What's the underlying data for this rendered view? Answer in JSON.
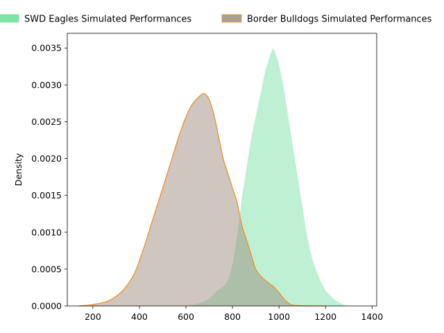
{
  "chart_data": {
    "type": "area",
    "title": "",
    "xlabel": "",
    "ylabel": "Density",
    "xlim": [
      90,
      1420
    ],
    "ylim": [
      0,
      0.0037
    ],
    "x_ticks": [
      200,
      400,
      600,
      800,
      1000,
      1200,
      1400
    ],
    "y_ticks": [
      0,
      0.0005,
      0.001,
      0.0015,
      0.002,
      0.0025,
      0.003,
      0.0035
    ],
    "x_tick_labels": [
      "200",
      "400",
      "600",
      "800",
      "1000",
      "1200",
      "1400"
    ],
    "y_tick_labels": [
      "0.0000",
      "0.0005",
      "0.0010",
      "0.0015",
      "0.0020",
      "0.0025",
      "0.0030",
      "0.0035"
    ],
    "grid": false,
    "legend_position": "top",
    "series": [
      {
        "name": "SWD Eagles Simulated Performances",
        "fill": "#7ee3a8",
        "fill_opacity": 0.5,
        "edge": "#ffffff",
        "points": [
          [
            560,
            0
          ],
          [
            600,
            1e-05
          ],
          [
            640,
            3e-05
          ],
          [
            680,
            7e-05
          ],
          [
            700,
            0.00011
          ],
          [
            720,
            0.00017
          ],
          [
            740,
            0.00023
          ],
          [
            760,
            0.00027
          ],
          [
            780,
            0.00037
          ],
          [
            800,
            0.0006
          ],
          [
            820,
            0.001
          ],
          [
            840,
            0.0015
          ],
          [
            860,
            0.0019
          ],
          [
            880,
            0.0023
          ],
          [
            900,
            0.0026
          ],
          [
            920,
            0.0029
          ],
          [
            940,
            0.0032
          ],
          [
            960,
            0.0034
          ],
          [
            975,
            0.0035
          ],
          [
            990,
            0.0034
          ],
          [
            1000,
            0.0033
          ],
          [
            1020,
            0.003
          ],
          [
            1040,
            0.0026
          ],
          [
            1060,
            0.0022
          ],
          [
            1080,
            0.0018
          ],
          [
            1100,
            0.0014
          ],
          [
            1120,
            0.001
          ],
          [
            1140,
            0.0007
          ],
          [
            1160,
            0.0005
          ],
          [
            1180,
            0.00035
          ],
          [
            1200,
            0.00022
          ],
          [
            1220,
            0.00015
          ],
          [
            1240,
            9e-05
          ],
          [
            1260,
            5e-05
          ],
          [
            1280,
            2e-05
          ],
          [
            1300,
            1e-05
          ],
          [
            1340,
            0
          ]
        ]
      },
      {
        "name": "Border Bulldogs Simulated Performances",
        "fill": "#9e8e80",
        "fill_opacity": 0.5,
        "edge": "#f28e2b",
        "points": [
          [
            140,
            0
          ],
          [
            180,
            1e-05
          ],
          [
            220,
            3e-05
          ],
          [
            260,
            6e-05
          ],
          [
            300,
            0.00013
          ],
          [
            340,
            0.00025
          ],
          [
            380,
            0.00045
          ],
          [
            420,
            0.0008
          ],
          [
            460,
            0.0012
          ],
          [
            500,
            0.0016
          ],
          [
            540,
            0.002
          ],
          [
            580,
            0.0024
          ],
          [
            620,
            0.0027
          ],
          [
            660,
            0.00285
          ],
          [
            680,
            0.00288
          ],
          [
            700,
            0.0028
          ],
          [
            720,
            0.0026
          ],
          [
            740,
            0.0023
          ],
          [
            760,
            0.002
          ],
          [
            780,
            0.0018
          ],
          [
            800,
            0.0016
          ],
          [
            820,
            0.0014
          ],
          [
            840,
            0.0011
          ],
          [
            860,
            0.0009
          ],
          [
            880,
            0.0007
          ],
          [
            900,
            0.0005
          ],
          [
            920,
            0.00041
          ],
          [
            940,
            0.00035
          ],
          [
            960,
            0.0003
          ],
          [
            980,
            0.00025
          ],
          [
            1000,
            0.00018
          ],
          [
            1020,
            0.0001
          ],
          [
            1040,
            4e-05
          ],
          [
            1060,
            1e-05
          ],
          [
            1100,
            3e-06
          ],
          [
            1200,
            0
          ]
        ]
      }
    ]
  }
}
